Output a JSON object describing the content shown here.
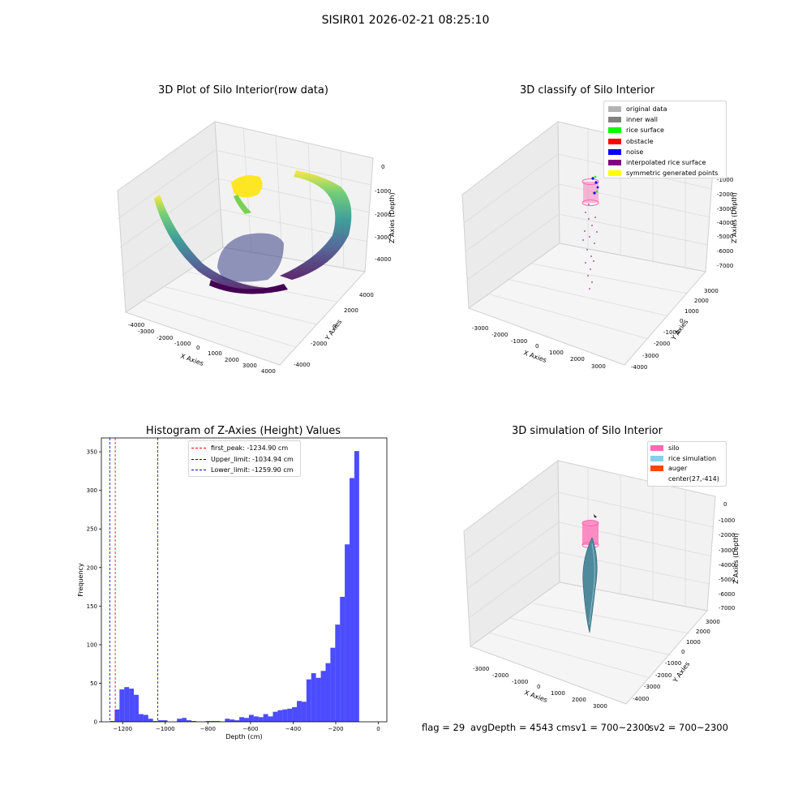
{
  "figure": {
    "title": "SISIR01 2026-02-21 08:25:10",
    "footer": {
      "flag": "flag = 29",
      "avg_depth": "avgDepth = 4543 cmsv1 = 700~2300",
      "sv2": "sv2 = 700~2300"
    }
  },
  "chart_data": [
    {
      "type": "scatter",
      "title": "3D Plot of Silo Interior(row data)",
      "xlabel": "X Axies",
      "ylabel": "Y Axies",
      "zlabel": "Z Axies (Depth)",
      "x_ticks": [
        "-4000",
        "-3000",
        "-2000",
        "-1000",
        "0",
        "1000",
        "2000",
        "3000",
        "4000"
      ],
      "y_ticks": [
        "-4000",
        "-2000",
        "0",
        "2000",
        "4000"
      ],
      "z_ticks": [
        "0",
        "-1000",
        "-2000",
        "-3000",
        "-4000"
      ],
      "xlim": [
        -4000,
        4000
      ],
      "ylim": [
        -4000,
        4000
      ],
      "zlim": [
        -4600,
        0
      ],
      "colormap": "viridis"
    },
    {
      "type": "scatter",
      "title": "3D classify of Silo Interior",
      "xlabel": "X Axies",
      "ylabel": "Y Axies",
      "zlabel": "Z Axies (Depth)",
      "x_ticks": [
        "-3000",
        "-2000",
        "-1000",
        "0",
        "1000",
        "2000",
        "3000"
      ],
      "y_ticks": [
        "-4000",
        "-3000",
        "-2000",
        "-1000",
        "0",
        "1000",
        "2000",
        "3000"
      ],
      "z_ticks": [
        "0",
        "-1000",
        "-2000",
        "-3000",
        "-4000",
        "-5000",
        "-6000",
        "-7000"
      ],
      "legend_position": "upper right",
      "legend": [
        {
          "label": "original data",
          "color": "#b3b3b3"
        },
        {
          "label": "inner wall",
          "color": "#808080"
        },
        {
          "label": "rice surface",
          "color": "#00ff00"
        },
        {
          "label": "obstacle",
          "color": "#ff0000"
        },
        {
          "label": "noise",
          "color": "#0000ff"
        },
        {
          "label": "interpolated rice surface",
          "color": "#800080"
        },
        {
          "label": "symmetric generated points",
          "color": "#ffff00"
        }
      ]
    },
    {
      "type": "bar",
      "title": "Histogram of Z-Axies (Height) Values",
      "xlabel": "Depth (cm)",
      "ylabel": "Frequency",
      "xlim": [
        -1300,
        40
      ],
      "ylim": [
        0,
        368
      ],
      "x_ticks": [
        -1200,
        -1000,
        -800,
        -600,
        -400,
        -200,
        0
      ],
      "y_ticks": [
        0,
        50,
        100,
        150,
        200,
        250,
        300,
        350
      ],
      "bar_color": "#0000ff",
      "bin_edges_start": -1260,
      "bin_width": 22.5,
      "values": [
        1,
        16,
        42,
        45,
        43,
        35,
        10,
        9,
        4,
        1,
        2,
        2,
        0,
        0,
        4,
        5,
        2,
        1,
        0,
        0,
        1,
        1,
        1,
        0,
        4,
        3,
        2,
        6,
        5,
        9,
        7,
        6,
        10,
        7,
        13,
        15,
        16,
        17,
        19,
        27,
        26,
        55,
        63,
        57,
        66,
        76,
        96,
        126,
        162,
        230,
        316,
        351
      ],
      "vlines": [
        {
          "label": "first_peak: -1234.90 cm",
          "x": -1234.9,
          "color": "#ff0000"
        },
        {
          "label": "Upper_limit: -1034.94 cm",
          "x": -1034.94,
          "color": "#00008b"
        },
        {
          "label": "Lower_limit: -1259.90 cm",
          "x": -1259.9,
          "color": "#0000ff"
        }
      ],
      "legend_position": "upper center"
    },
    {
      "type": "scatter",
      "title": "3D simulation of Silo Interior",
      "xlabel": "X Axies",
      "ylabel": "Y Axies",
      "zlabel": "Z Axies (Depth)",
      "x_ticks": [
        "-3000",
        "-2000",
        "-1000",
        "0",
        "1000",
        "2000",
        "3000"
      ],
      "y_ticks": [
        "-4000",
        "-3000",
        "-2000",
        "-1000",
        "0",
        "1000",
        "2000",
        "3000"
      ],
      "z_ticks": [
        "0",
        "-1000",
        "-2000",
        "-3000",
        "-4000",
        "-5000",
        "-6000",
        "-7000"
      ],
      "legend_position": "upper right",
      "legend": [
        {
          "label": "silo",
          "color": "#ff69b4"
        },
        {
          "label": "rice simulation",
          "color": "#87ceeb"
        },
        {
          "label": "auger",
          "color": "#ff4500"
        },
        {
          "label": "center(27,-414)",
          "color": "#ffffff"
        }
      ]
    }
  ]
}
